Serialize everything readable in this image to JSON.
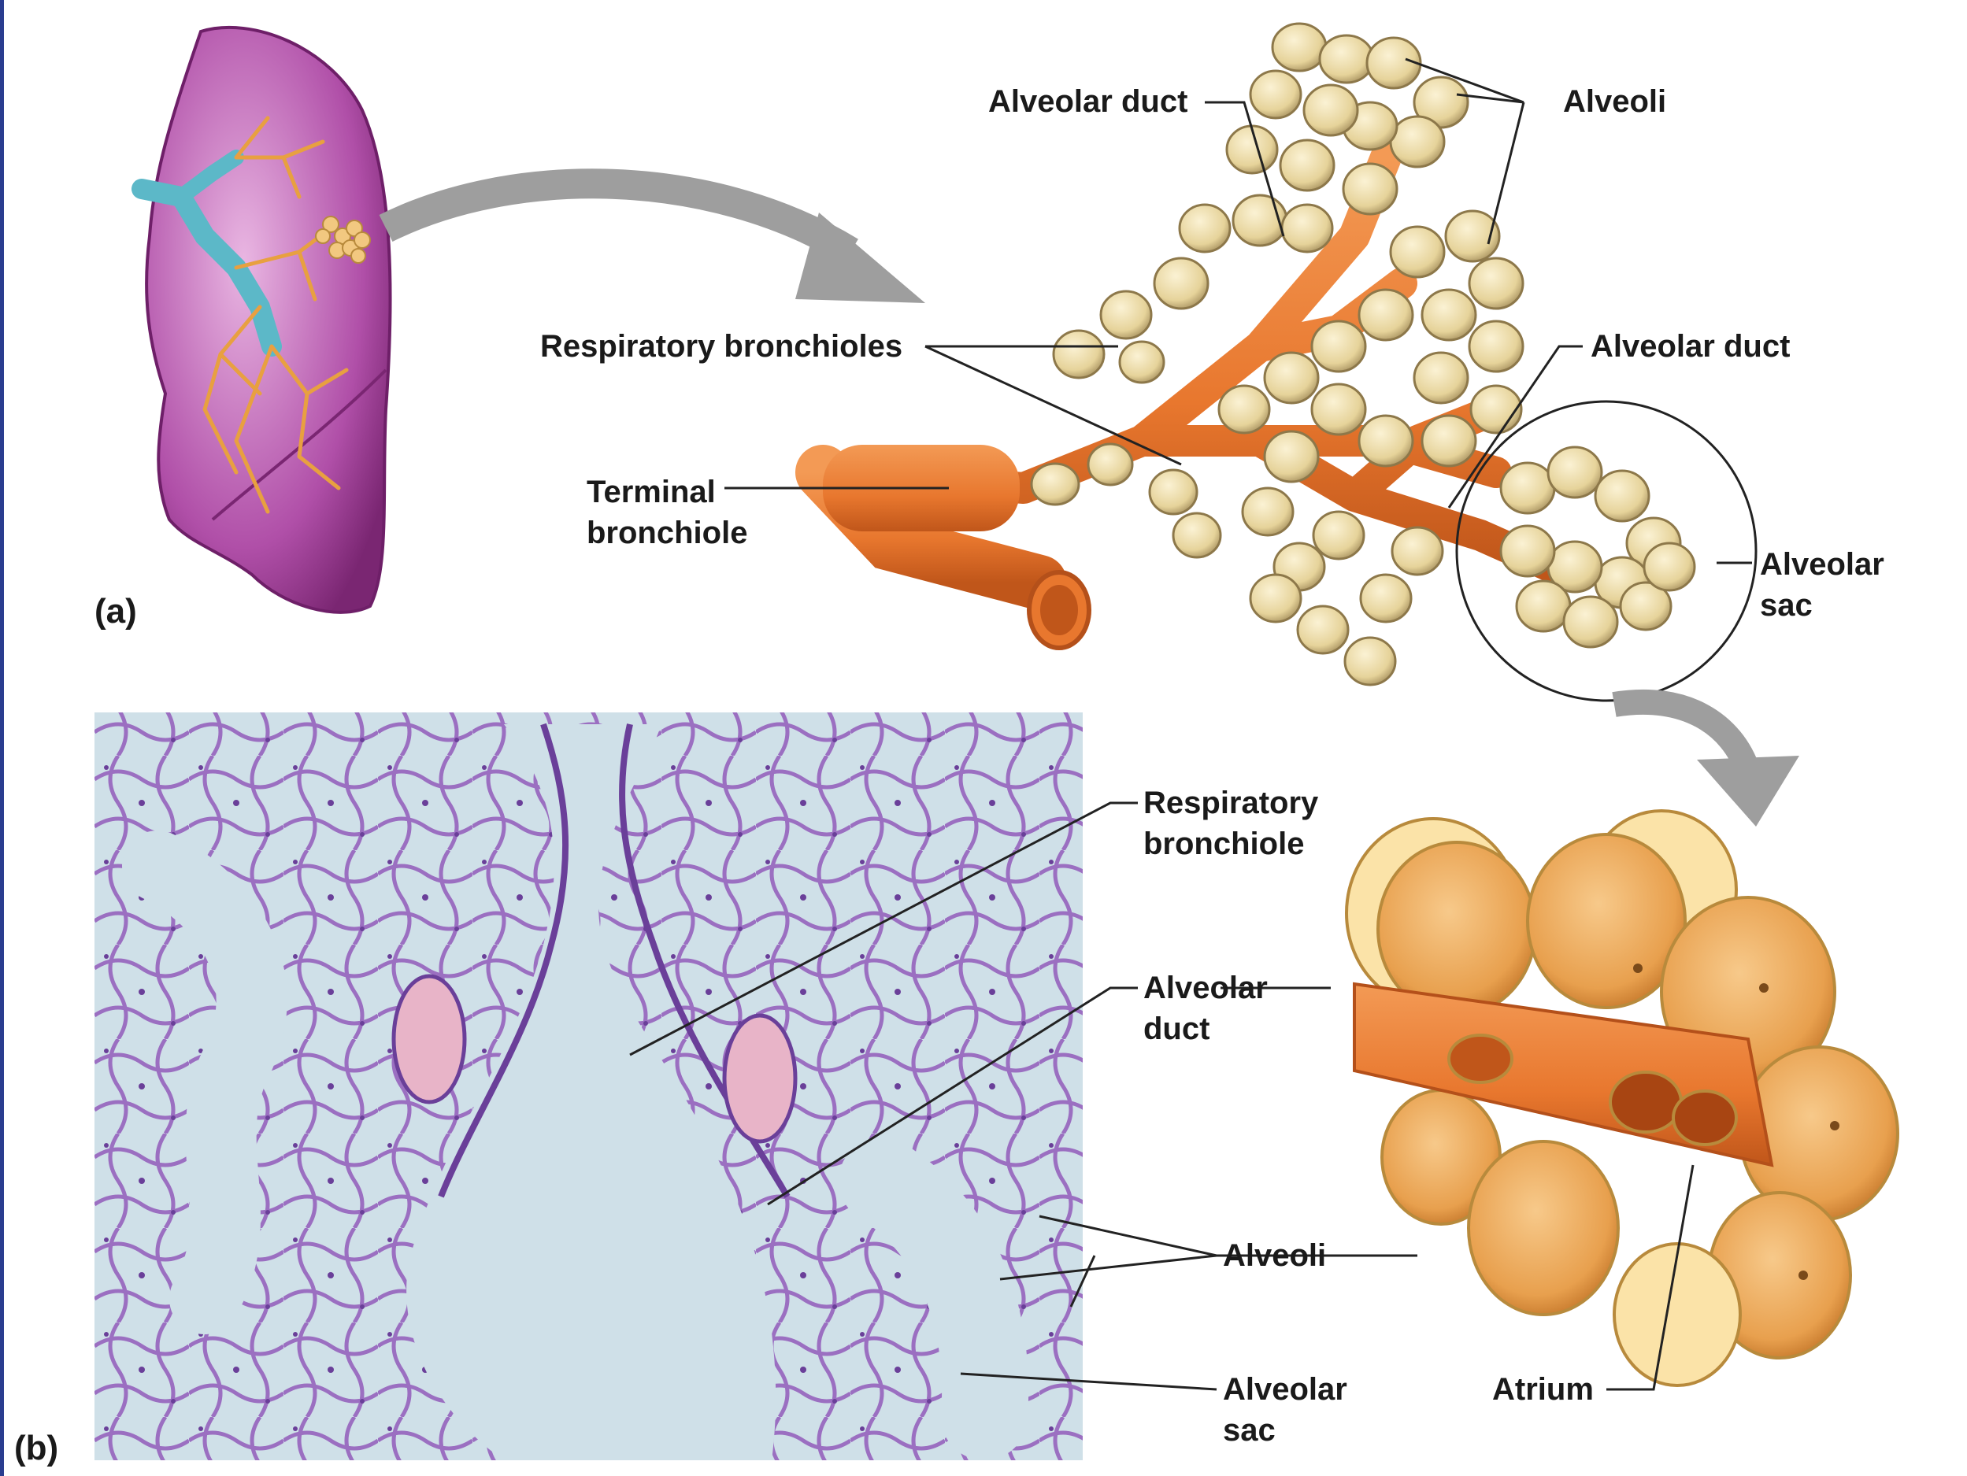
{
  "panel_a": {
    "panel_label": "(a)",
    "labels": {
      "alveolar_duct_top": "Alveolar duct",
      "alveoli_top": "Alveoli",
      "respiratory_bronchioles": "Respiratory bronchioles",
      "alveolar_duct_right": "Alveolar duct",
      "terminal_bronchiole": [
        "Terminal",
        "bronchiole"
      ],
      "alveolar_sac": [
        "Alveolar",
        "sac"
      ]
    }
  },
  "panel_b": {
    "panel_label": "(b)",
    "labels": {
      "respiratory_bronchiole": [
        "Respiratory",
        "bronchiole"
      ],
      "alveolar_duct": [
        "Alveolar",
        "duct"
      ],
      "alveoli": "Alveoli",
      "alveolar_sac": [
        "Alveolar",
        "sac"
      ],
      "atrium": "Atrium"
    }
  },
  "colors": {
    "lung": "#b04fa8",
    "bronchus": "#5cb8c8",
    "bronchiole": "#e8772e",
    "alveolus": "#e6d39a",
    "micrograph_bg": "#cfe0e8",
    "tissue": "#9b6fc1",
    "arrow": "#9e9e9e",
    "leader_line": "#222222"
  }
}
